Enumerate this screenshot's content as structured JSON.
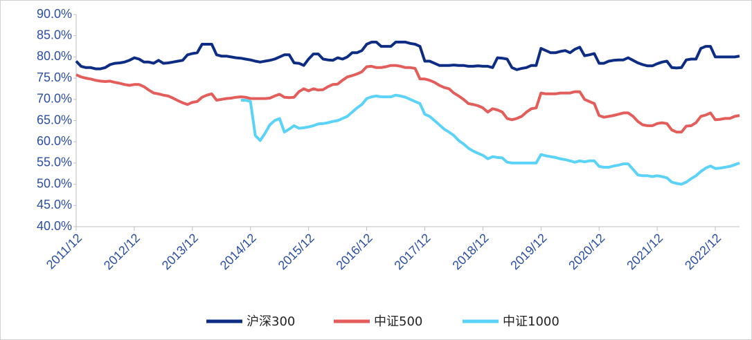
{
  "chart_data": {
    "type": "line",
    "categories": [
      "2011/12",
      null,
      null,
      null,
      null,
      null,
      null,
      null,
      null,
      null,
      null,
      null,
      "2012/12",
      null,
      null,
      null,
      null,
      null,
      null,
      null,
      null,
      null,
      null,
      null,
      "2013/12",
      null,
      null,
      null,
      null,
      null,
      null,
      null,
      null,
      null,
      null,
      null,
      "2014/12",
      null,
      null,
      null,
      null,
      null,
      null,
      null,
      null,
      null,
      null,
      null,
      "2015/12",
      null,
      null,
      null,
      null,
      null,
      null,
      null,
      null,
      null,
      null,
      null,
      "2016/12",
      null,
      null,
      null,
      null,
      null,
      null,
      null,
      null,
      null,
      null,
      null,
      "2017/12",
      null,
      null,
      null,
      null,
      null,
      null,
      null,
      null,
      null,
      null,
      null,
      "2018/12",
      null,
      null,
      null,
      null,
      null,
      null,
      null,
      null,
      null,
      null,
      null,
      "2019/12",
      null,
      null,
      null,
      null,
      null,
      null,
      null,
      null,
      null,
      null,
      null,
      "2020/12",
      null,
      null,
      null,
      null,
      null,
      null,
      null,
      null,
      null,
      null,
      null,
      "2021/12",
      null,
      null,
      null,
      null,
      null,
      null,
      null,
      null,
      null,
      null,
      null,
      "2022/12",
      null,
      null,
      null,
      null,
      null
    ],
    "series": [
      {
        "name": "沪深300",
        "color": "#0d2c84",
        "values": [
          79,
          77.8,
          77.5,
          77.5,
          77.2,
          77.2,
          77.5,
          78.2,
          78.5,
          78.6,
          78.8,
          79.2,
          79.8,
          79.5,
          78.8,
          78.8,
          78.5,
          79.2,
          78.5,
          78.6,
          78.8,
          79,
          79.2,
          80.5,
          80.8,
          81,
          83,
          83,
          83,
          80.5,
          80.2,
          80.2,
          80,
          79.8,
          79.7,
          79.5,
          79.3,
          79,
          78.8,
          79,
          79.2,
          79.5,
          80,
          80.5,
          80.5,
          78.6,
          78.5,
          78,
          79.5,
          80.7,
          80.7,
          79.5,
          79.3,
          79.2,
          79.8,
          79.5,
          80,
          81,
          81,
          81.5,
          83,
          83.5,
          83.5,
          82.5,
          82.5,
          82.5,
          83.5,
          83.5,
          83.5,
          83.2,
          83,
          82.5,
          79,
          79,
          78.5,
          78,
          78,
          78,
          78.1,
          78,
          78,
          77.8,
          77.8,
          77.9,
          77.8,
          77.8,
          77.5,
          79.8,
          79.7,
          79.5,
          77.5,
          77,
          77.3,
          77.5,
          78,
          78,
          82,
          81.5,
          81,
          81,
          81.3,
          81.5,
          81,
          81.8,
          82.3,
          80.3,
          80.5,
          80.8,
          78.5,
          78.5,
          79,
          79.2,
          79.3,
          79.3,
          79.8,
          79.2,
          78.6,
          78.2,
          77.9,
          77.9,
          78.4,
          78.8,
          79,
          77.5,
          77.4,
          77.5,
          79.3,
          79.5,
          79.5,
          82,
          82.5,
          82.5,
          80,
          80,
          80,
          80,
          80,
          80.2
        ]
      },
      {
        "name": "中证500",
        "color": "#e35d5a",
        "values": [
          75.8,
          75.3,
          75,
          74.8,
          74.5,
          74.3,
          74.2,
          74.3,
          74,
          73.8,
          73.5,
          73.3,
          73.5,
          73.5,
          73,
          72.2,
          71.5,
          71.3,
          71,
          70.8,
          70.3,
          69.7,
          69.2,
          68.8,
          69.3,
          69.5,
          70.5,
          71,
          71.3,
          69.8,
          70,
          70.2,
          70.3,
          70.5,
          70.6,
          70.5,
          70.2,
          70.2,
          70.2,
          70.2,
          70.3,
          70.8,
          71.2,
          70.5,
          70.4,
          70.5,
          71.8,
          72.5,
          72,
          72.5,
          72.2,
          72.3,
          73,
          73.5,
          73.6,
          74.5,
          75.3,
          75.6,
          76,
          76.5,
          77.7,
          77.8,
          77.5,
          77.5,
          77.7,
          78,
          78,
          77.8,
          77.5,
          77.5,
          77.3,
          74.8,
          74.8,
          74.5,
          74,
          73.3,
          72.8,
          72.5,
          71.5,
          70.8,
          70,
          69,
          68.8,
          68.5,
          68,
          67,
          67.8,
          67.5,
          67,
          65.5,
          65.2,
          65.5,
          66,
          67,
          67.8,
          68,
          71.5,
          71.3,
          71.3,
          71.3,
          71.5,
          71.5,
          71.5,
          71.8,
          71.8,
          70,
          69.5,
          69,
          66.2,
          65.8,
          66,
          66.2,
          66.5,
          66.8,
          66.8,
          66,
          64.8,
          64,
          63.8,
          63.8,
          64.3,
          64.5,
          64.3,
          62.8,
          62.3,
          62.3,
          63.7,
          63.8,
          64.5,
          66,
          66.3,
          66.8,
          65.2,
          65.3,
          65.5,
          65.5,
          66,
          66.2
        ]
      },
      {
        "name": "中证1000",
        "color": "#5bd2f8",
        "values": [
          null,
          null,
          null,
          null,
          null,
          null,
          null,
          null,
          null,
          null,
          null,
          null,
          null,
          null,
          null,
          null,
          null,
          null,
          null,
          null,
          null,
          null,
          null,
          null,
          null,
          null,
          null,
          null,
          null,
          null,
          null,
          null,
          null,
          null,
          69.8,
          69.8,
          69.5,
          61.5,
          60.3,
          62,
          64,
          65,
          65.5,
          62.3,
          63,
          63.8,
          63.2,
          63.3,
          63.5,
          63.8,
          64.2,
          64.3,
          64.5,
          64.8,
          65,
          65.5,
          66,
          67,
          68,
          68.8,
          70.2,
          70.6,
          70.8,
          70.6,
          70.6,
          70.6,
          71,
          70.8,
          70.5,
          70,
          69.5,
          69,
          66.5,
          66,
          65,
          64,
          63,
          62.3,
          61.5,
          60.3,
          59.5,
          58.5,
          57.8,
          57.3,
          56.8,
          56,
          56.5,
          56.3,
          56.2,
          55.2,
          55,
          55,
          55,
          55,
          55,
          55,
          57,
          56.7,
          56.5,
          56.3,
          56,
          55.8,
          55.5,
          55.2,
          55.5,
          55.3,
          55.5,
          55.5,
          54.2,
          54,
          54,
          54.3,
          54.5,
          54.8,
          54.8,
          53.5,
          52.2,
          52,
          52,
          51.8,
          52,
          51.8,
          51.5,
          50.5,
          50.2,
          50,
          50.5,
          51.3,
          52,
          53,
          53.8,
          54.3,
          53.7,
          53.8,
          54,
          54.2,
          54.6,
          55
        ]
      }
    ],
    "ylim": [
      40,
      90
    ],
    "yticks": [
      {
        "value": 40,
        "label": "40.0%"
      },
      {
        "value": 45,
        "label": "45.0%"
      },
      {
        "value": 50,
        "label": "50.0%"
      },
      {
        "value": 55,
        "label": "55.0%"
      },
      {
        "value": 60,
        "label": "60.0%"
      },
      {
        "value": 65,
        "label": "65.0%"
      },
      {
        "value": 70,
        "label": "70.0%"
      },
      {
        "value": 75,
        "label": "75.0%"
      },
      {
        "value": 80,
        "label": "80.0%"
      },
      {
        "value": 85,
        "label": "85.0%"
      },
      {
        "value": 90,
        "label": "90.0%"
      }
    ],
    "grid": false,
    "legend": "bottom"
  }
}
